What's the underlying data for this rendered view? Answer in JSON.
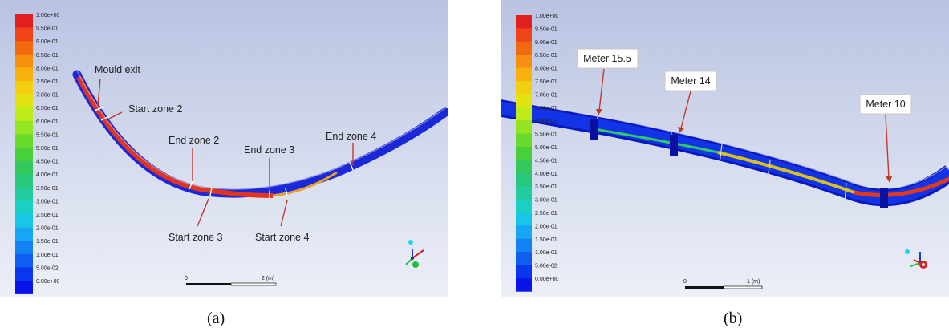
{
  "legend": {
    "ticks": [
      "1.00e+00",
      "9.50e-01",
      "9.00e-01",
      "8.50e-01",
      "8.00e-01",
      "7.50e-01",
      "7.00e-01",
      "6.50e-01",
      "6.00e-01",
      "5.50e-01",
      "5.00e-01",
      "4.50e-01",
      "4.00e-01",
      "3.50e-01",
      "3.00e-01",
      "2.50e-01",
      "2.00e-01",
      "1.50e-01",
      "1.00e-01",
      "5.00e-02",
      "0.00e+00"
    ],
    "colors": [
      "#e0201e",
      "#ee4418",
      "#f26a10",
      "#f4900e",
      "#f6b10c",
      "#f2cf10",
      "#e2e412",
      "#bfeb18",
      "#93e521",
      "#68db2c",
      "#48d03a",
      "#32c85a",
      "#28c87c",
      "#22cc9e",
      "#1ad0c4",
      "#18c6e8",
      "#16a6f4",
      "#1282f4",
      "#0e5ef2",
      "#0a36ee",
      "#0a14e8"
    ]
  },
  "panel_a": {
    "caption": "(a)",
    "labels": {
      "mould_exit": "Mould exit",
      "start_zone_2": "Start zone 2",
      "end_zone_2": "End zone 2",
      "end_zone_3": "End zone 3",
      "end_zone_4": "End zone 4",
      "start_zone_3": "Start zone 3",
      "start_zone_4": "Start zone 4"
    },
    "scale": {
      "start": "0",
      "end": "2 (m)"
    }
  },
  "panel_b": {
    "caption": "(b)",
    "labels": {
      "meter_15_5": "Meter 15.5",
      "meter_14": "Meter 14",
      "meter_10": "Meter 10"
    },
    "scale": {
      "start": "0",
      "end": "1 (m)"
    }
  }
}
